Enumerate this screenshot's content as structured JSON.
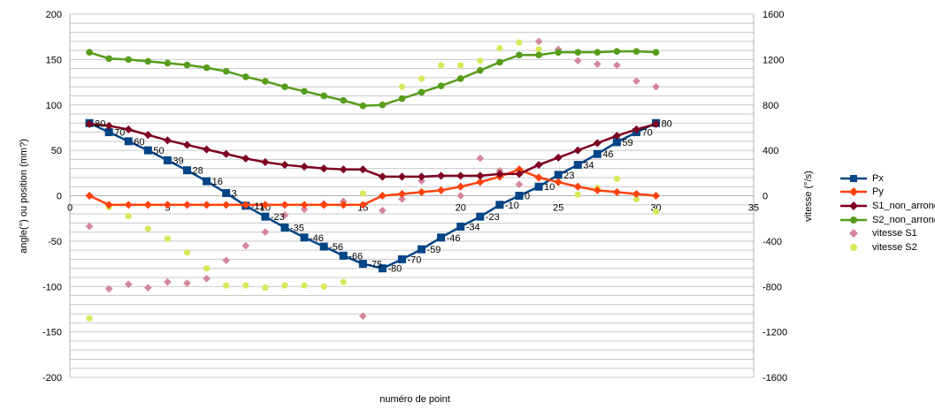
{
  "chart_data": {
    "type": "line",
    "xlabel": "numéro de point",
    "ylabel_left": "angle(°) ou position (mm?)",
    "ylabel_right": "vitesse (°/s)",
    "xlim": [
      0,
      35
    ],
    "ylim_left": [
      -200,
      200
    ],
    "ylim_right": [
      -1600,
      1600
    ],
    "x_ticks": [
      "0",
      "5",
      "10",
      "15",
      "20",
      "25",
      "30",
      "35"
    ],
    "y_left_ticks": [
      "200",
      "150",
      "100",
      "50",
      "0",
      "-50",
      "-100",
      "-150",
      "-200"
    ],
    "y_right_ticks": [
      "1600",
      "1200",
      "800",
      "400",
      "0",
      "-400",
      "-800",
      "-1200",
      "-1600"
    ],
    "grid": true,
    "legend_position": "right",
    "x": [
      1,
      2,
      3,
      4,
      5,
      6,
      7,
      8,
      9,
      10,
      11,
      12,
      13,
      14,
      15,
      16,
      17,
      18,
      19,
      20,
      21,
      22,
      23,
      24,
      25,
      26,
      27,
      28,
      29,
      30
    ],
    "series": [
      {
        "name": "Px",
        "axis": "left",
        "marker": "square",
        "color": "#004586",
        "values": [
          80,
          70,
          60,
          50,
          39,
          28,
          16,
          3,
          -11,
          -23,
          -35,
          -46,
          -56,
          -66,
          -75,
          -80,
          -70,
          -59,
          -46,
          -34,
          -23,
          -10,
          0,
          10,
          23,
          34,
          46,
          59,
          70,
          80
        ],
        "labels": [
          "80",
          "70",
          "60",
          "50",
          "39",
          "28",
          "16",
          "3",
          "-11",
          "-23",
          "-35",
          "-46",
          "-56",
          "-66",
          "-75",
          "-80",
          "-70",
          "-59",
          "-46",
          "-34",
          "-23",
          "-10",
          "0",
          "10",
          "23",
          "34",
          "46",
          "59",
          "70",
          "80"
        ]
      },
      {
        "name": "Py",
        "axis": "left",
        "marker": "diamond",
        "color": "#ff420e",
        "values": [
          0,
          -10,
          -10,
          -10,
          -10,
          -10,
          -10,
          -10,
          -10,
          -10,
          -10,
          -10,
          -10,
          -10,
          -10,
          0,
          2,
          4,
          6,
          10,
          15,
          21,
          29,
          20,
          15,
          10,
          6,
          4,
          2,
          0
        ]
      },
      {
        "name": "S1_non_arrondi",
        "axis": "left",
        "marker": "diamond",
        "color": "#7e0021",
        "values": [
          79,
          77,
          73,
          67,
          61,
          56,
          51,
          46,
          41,
          37,
          34,
          32,
          30,
          29,
          29,
          21,
          21,
          21,
          22,
          22,
          22,
          24,
          24,
          34,
          42,
          50,
          58,
          66,
          73,
          79
        ]
      },
      {
        "name": "S2_non_arrondi",
        "axis": "left",
        "marker": "circle",
        "color": "#579d1c",
        "values": [
          158,
          151,
          150,
          148,
          146,
          144,
          141,
          137,
          131,
          126,
          120,
          115,
          110,
          105,
          99,
          100,
          107,
          114,
          121,
          129,
          138,
          147,
          155,
          155,
          158,
          158,
          158,
          159,
          159,
          158
        ]
      },
      {
        "name": "vitesse S1",
        "axis": "right",
        "marker": "diamond",
        "color": "#d4879b",
        "type": "scatter",
        "values": [
          -270,
          -820,
          -780,
          -810,
          -760,
          -770,
          -730,
          -570,
          -440,
          -320,
          -170,
          -120,
          -70,
          -50,
          -1060,
          -130,
          -30,
          130,
          50,
          0,
          330,
          220,
          100,
          1360,
          1290,
          1190,
          1160,
          1150,
          1010,
          960
        ]
      },
      {
        "name": "vitesse S2",
        "axis": "right",
        "marker": "circle",
        "color": "#d9e85b",
        "type": "scatter",
        "values": [
          -1080,
          -100,
          -180,
          -290,
          -380,
          -500,
          -640,
          -790,
          -790,
          -810,
          -790,
          -790,
          -800,
          -760,
          20,
          170,
          960,
          1030,
          1150,
          1150,
          1190,
          1300,
          1350,
          1290,
          1260,
          10,
          70,
          150,
          -30,
          -140
        ]
      }
    ]
  }
}
